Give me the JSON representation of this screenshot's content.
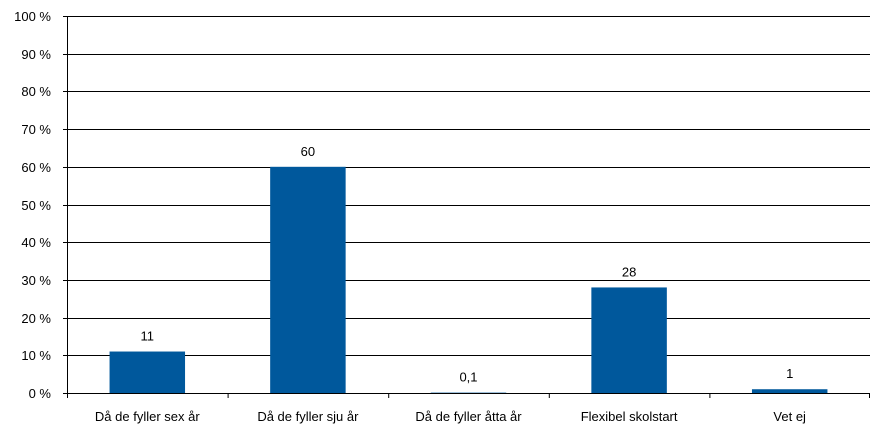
{
  "chart_data": {
    "type": "bar",
    "categories": [
      "Då de fyller sex år",
      "Då de fyller sju år",
      "Då de fyller åtta år",
      "Flexibel skolstart",
      "Vet ej"
    ],
    "values": [
      11,
      60,
      0.1,
      28,
      1
    ],
    "data_labels": [
      "11",
      "60",
      "0,1",
      "28",
      "1"
    ],
    "ylim": [
      0,
      100
    ],
    "yticks": [
      0,
      10,
      20,
      30,
      40,
      50,
      60,
      70,
      80,
      90,
      100
    ],
    "ytick_labels": [
      "0 %",
      "10 %",
      "20 %",
      "30 %",
      "40 %",
      "50 %",
      "60 %",
      "70 %",
      "80 %",
      "90 %",
      "100 %"
    ],
    "grid": true,
    "legend": "none",
    "title": "",
    "xlabel": "",
    "ylabel": "",
    "colors": {
      "bar": "#00589c",
      "grid": "#000000",
      "axis": "#000000"
    }
  }
}
